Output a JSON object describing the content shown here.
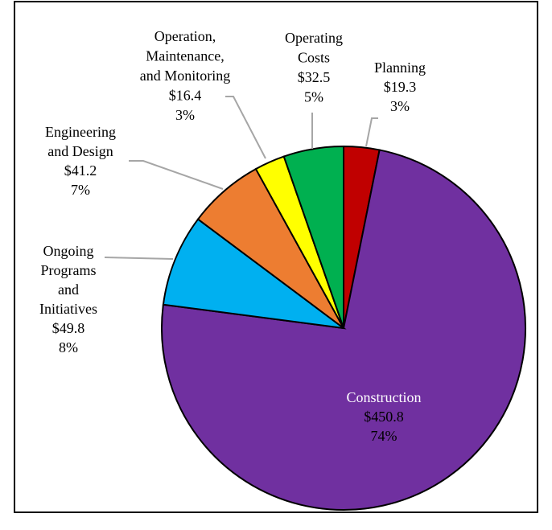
{
  "chart_data": {
    "type": "pie",
    "categories": [
      "Planning",
      "Construction",
      "Ongoing\nPrograms\nand\nInitiatives",
      "Engineering\nand Design",
      "Operation,\nMaintenance,\nand Monitoring",
      "Operating\nCosts"
    ],
    "values": [
      19.3,
      450.8,
      49.8,
      41.2,
      16.4,
      32.5
    ],
    "value_labels": [
      "$19.3",
      "$450.8",
      "$49.8",
      "$41.2",
      "$16.4",
      "$32.5"
    ],
    "percents": [
      3,
      74,
      8,
      7,
      3,
      5
    ],
    "percent_labels": [
      "3%",
      "74%",
      "8%",
      "7%",
      "3%",
      "5%"
    ],
    "colors": [
      "#c00000",
      "#7030a0",
      "#00b0f0",
      "#ed7d31",
      "#ffff00",
      "#00b050"
    ]
  }
}
